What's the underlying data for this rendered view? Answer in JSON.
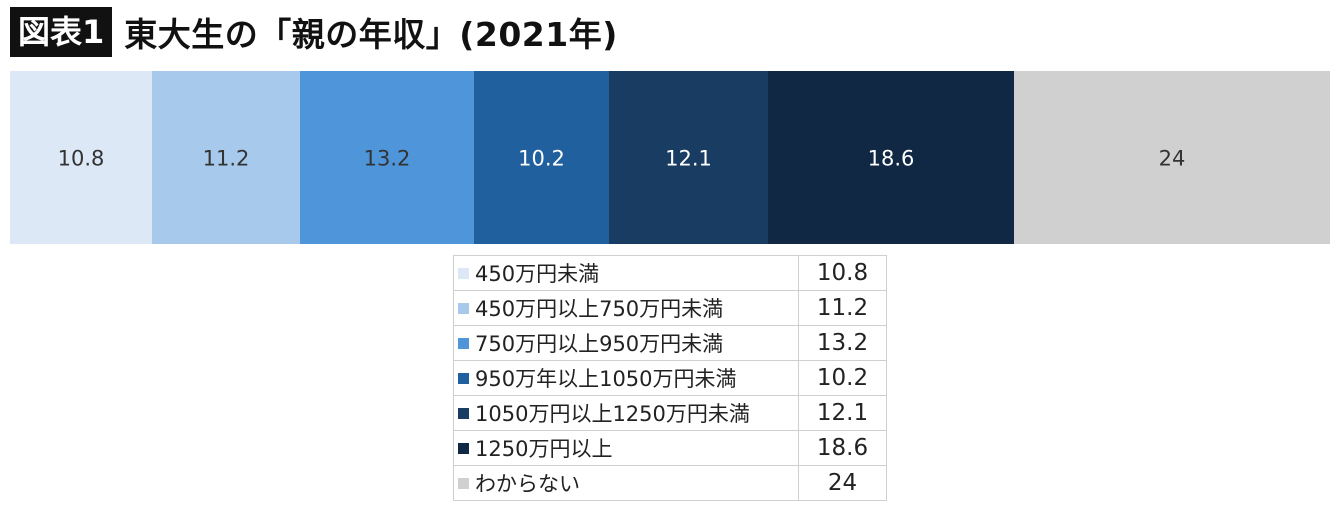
{
  "header": {
    "badge": "図表1",
    "title": "東大生の「親の年収」(2021年)"
  },
  "chart_data": {
    "type": "bar",
    "orientation": "horizontal-stacked-100",
    "title": "東大生の「親の年収」(2021年)",
    "categories": [
      "450万円未満",
      "450万円以上750万円未満",
      "750万円以上950万円未満",
      "950万年以上1050万円未満",
      "1050万円以上1250万円未満",
      "1250万円以上",
      "わからない"
    ],
    "values": [
      10.8,
      11.2,
      13.2,
      10.2,
      12.1,
      18.6,
      24
    ],
    "value_labels": [
      "10.8",
      "11.2",
      "13.2",
      "10.2",
      "12.1",
      "18.6",
      "24"
    ],
    "colors": [
      "#dce8f6",
      "#a6c9ec",
      "#4e95da",
      "#21609f",
      "#193c63",
      "#102843",
      "#d0d0d0"
    ],
    "label_colors": [
      "#333333",
      "#333333",
      "#333333",
      "#ffffff",
      "#ffffff",
      "#ffffff",
      "#333333"
    ],
    "xlim": [
      0,
      100.1
    ],
    "legend": "below-table"
  }
}
